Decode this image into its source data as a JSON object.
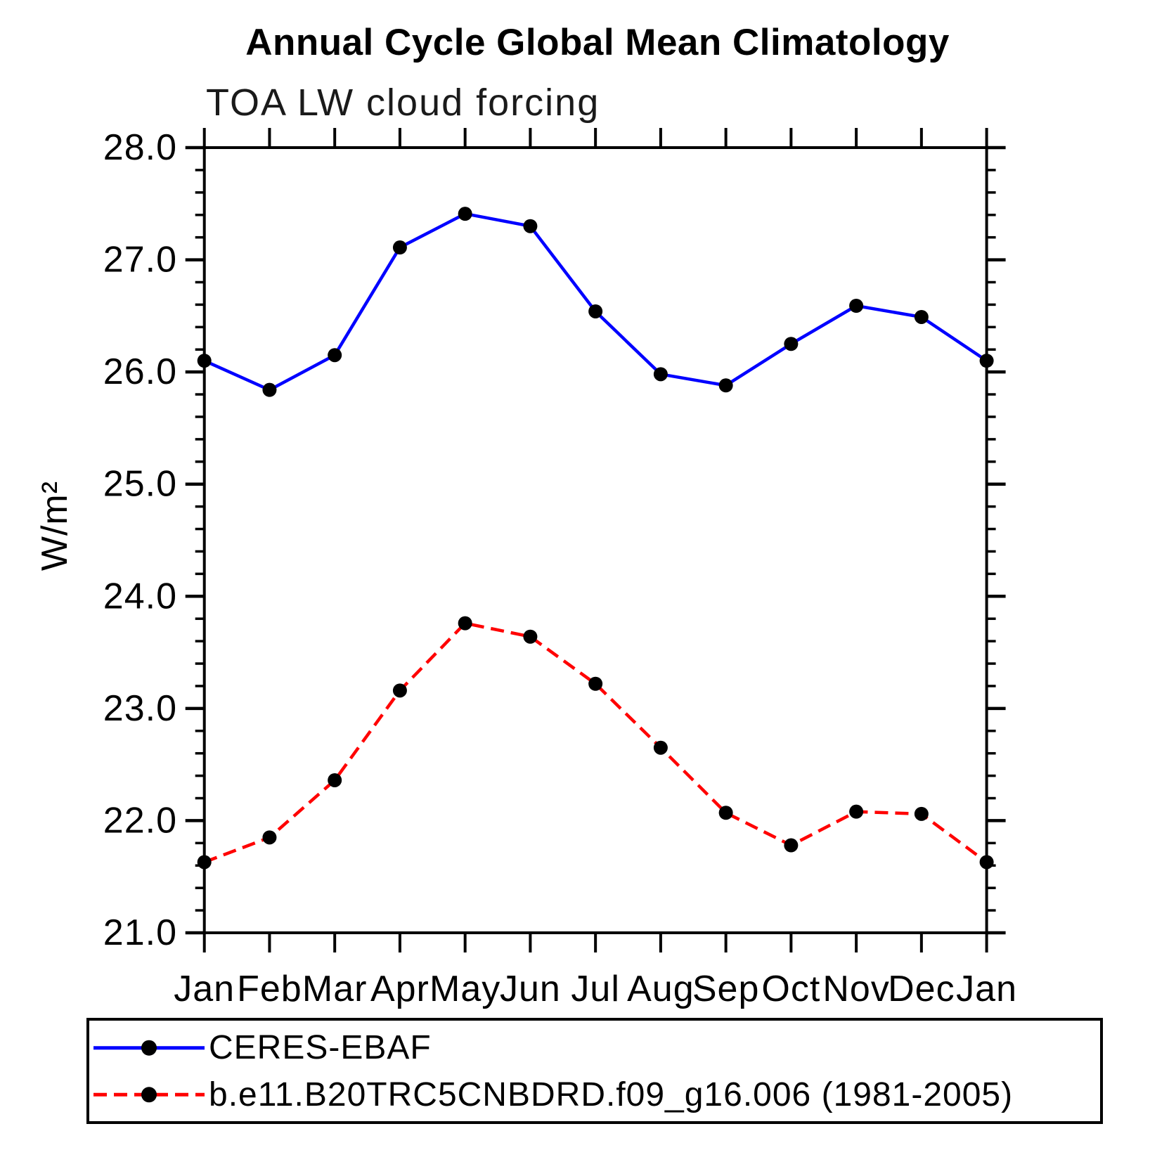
{
  "chart_data": {
    "type": "line",
    "title": "Annual Cycle Global Mean Climatology",
    "subtitle": "TOA LW cloud forcing",
    "ylabel": "W/m²",
    "x": [
      "Jan",
      "Feb",
      "Mar",
      "Apr",
      "May",
      "Jun",
      "Jul",
      "Aug",
      "Sep",
      "Oct",
      "Nov",
      "Dec",
      "Jan"
    ],
    "ylim": [
      21.0,
      28.0
    ],
    "ytick_major_step": 1.0,
    "ytick_minor_step": 0.2,
    "grid": false,
    "legend_position": "bottom-left-box",
    "axis_color": "#000000",
    "marker_color": "#000000",
    "series": [
      {
        "name": "CERES-EBAF",
        "color": "#0000FF",
        "line_style": "solid",
        "marker": "circle",
        "values": [
          26.1,
          25.84,
          26.15,
          27.11,
          27.41,
          27.3,
          26.54,
          25.98,
          25.88,
          26.25,
          26.59,
          26.49,
          26.1
        ]
      },
      {
        "name": "b.e11.B20TRC5CNBDRD.f09_g16.006 (1981-2005)",
        "color": "#FF0000",
        "line_style": "dashed",
        "marker": "circle",
        "values": [
          21.63,
          21.85,
          22.36,
          23.16,
          23.76,
          23.64,
          23.22,
          22.65,
          22.07,
          21.78,
          22.08,
          22.06,
          21.63
        ]
      }
    ]
  }
}
